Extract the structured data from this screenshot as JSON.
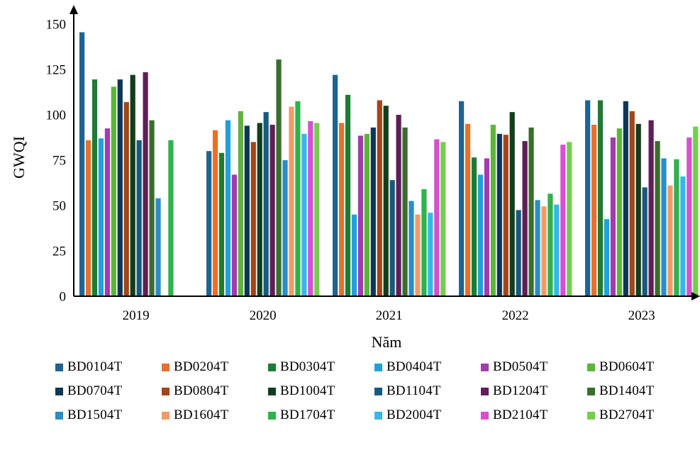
{
  "chart_data": {
    "type": "bar",
    "title": "",
    "xlabel": "Năm",
    "ylabel": "GWQI",
    "ylim": [
      0,
      150
    ],
    "yticks": [
      "0",
      "25",
      "50",
      "75",
      "100",
      "125",
      "150"
    ],
    "categories": [
      "2019",
      "2020",
      "2021",
      "2022",
      "2023"
    ],
    "legend_position": "bottom",
    "series": [
      {
        "name": "BD0104T",
        "color": "#1F6391",
        "values": [
          145.5,
          80,
          122,
          107.5,
          108
        ]
      },
      {
        "name": "BD0204T",
        "color": "#E8702A",
        "values": [
          86,
          91.5,
          95.5,
          95,
          94.5
        ]
      },
      {
        "name": "BD0304T",
        "color": "#1E7B36",
        "values": [
          119.5,
          79,
          111,
          76.5,
          108
        ]
      },
      {
        "name": "BD0404T",
        "color": "#21A0DC",
        "values": [
          87,
          97,
          45,
          67,
          42.5
        ]
      },
      {
        "name": "BD0504T",
        "color": "#A23BAE",
        "values": [
          92.5,
          67,
          88.5,
          76,
          87.5
        ]
      },
      {
        "name": "BD0604T",
        "color": "#5DB43A",
        "values": [
          115.5,
          102,
          89.5,
          94.5,
          92.5
        ]
      },
      {
        "name": "BD0704T",
        "color": "#0F3654",
        "values": [
          119.5,
          94,
          93,
          89.5,
          107.5
        ]
      },
      {
        "name": "BD0804T",
        "color": "#A0461B",
        "values": [
          107,
          85,
          108,
          89,
          102
        ]
      },
      {
        "name": "BD1004T",
        "color": "#123E1B",
        "values": [
          122,
          95.5,
          105,
          101.5,
          95
        ]
      },
      {
        "name": "BD1104T",
        "color": "#165A7E",
        "values": [
          86,
          101.5,
          64,
          47.5,
          60
        ]
      },
      {
        "name": "BD1204T",
        "color": "#5E1F56",
        "values": [
          123.5,
          94.5,
          100,
          85.5,
          97
        ]
      },
      {
        "name": "BD1404T",
        "color": "#3A6E2D",
        "values": [
          97,
          130.5,
          93,
          93,
          85.5
        ]
      },
      {
        "name": "BD1504T",
        "color": "#2C8DC6",
        "values": [
          54,
          75,
          52.5,
          53,
          76
        ]
      },
      {
        "name": "BD1604T",
        "color": "#F39A66",
        "values": [
          0,
          104.5,
          45,
          49.5,
          61
        ]
      },
      {
        "name": "BD1704T",
        "color": "#2DB24C",
        "values": [
          86,
          107.5,
          59,
          56.5,
          75.5
        ]
      },
      {
        "name": "BD2004T",
        "color": "#36B6EC",
        "values": [
          0,
          89.5,
          46,
          50.5,
          66
        ]
      },
      {
        "name": "BD2104T",
        "color": "#D84FD0",
        "values": [
          0,
          96.5,
          86.5,
          83.5,
          87.5
        ]
      },
      {
        "name": "BD2704T",
        "color": "#73CE4E",
        "values": [
          0,
          95.5,
          85,
          85,
          93.5
        ]
      }
    ]
  }
}
